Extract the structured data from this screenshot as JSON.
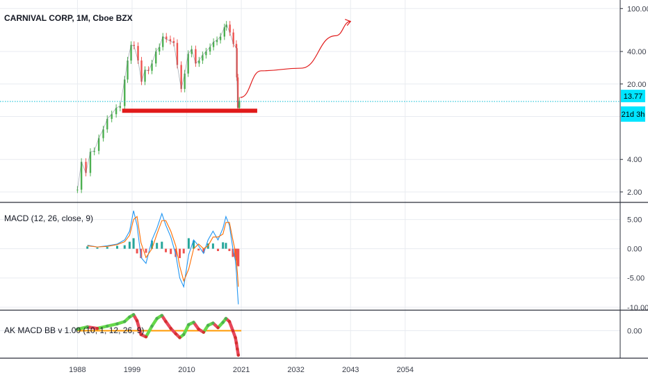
{
  "colors": {
    "background": "#ffffff",
    "grid": "#e8ebf0",
    "separator": "#2a2e39",
    "axis_text": "#3a3e4a",
    "price_line": "#00bcd4",
    "up_candle": "#4caf50",
    "down_candle": "#ef5350",
    "annotation_red": "#e11b1b",
    "macd_line": "#2196f3",
    "signal_line": "#ff6d00",
    "hist_up": "#26a69a",
    "hist_down": "#ef5350",
    "bb_band": "#ff9800",
    "badge_bg": "#00e5ff"
  },
  "chart_data": [
    {
      "type": "line",
      "title": "CARNIVAL CORP, 1M, Cboe BZX",
      "scale": "log",
      "y_ticks": [
        "2.00",
        "4.00",
        "20.00",
        "40.00",
        "100.00"
      ],
      "ylim": [
        1.6,
        120
      ],
      "x_ticks": [
        "1988",
        "1999",
        "2010",
        "2021",
        "2032",
        "2043",
        "2054"
      ],
      "xlim": [
        1972.4,
        2097.3
      ],
      "grid": true,
      "current_price": {
        "label": "13.77",
        "value": 13.77,
        "countdown": "21d 3h"
      },
      "series": [
        {
          "x": [
            1988.0,
            1988.8,
            1989.7,
            1990.6,
            1991.4,
            1992.3,
            1993.2,
            1994.0,
            1994.9,
            1995.8,
            1996.6,
            1997.5,
            1998.1,
            1998.8,
            1999.4,
            2000.2,
            2000.9,
            2001.6,
            2002.3,
            2003.0,
            2003.8,
            2004.5,
            2005.2,
            2005.9,
            2006.7,
            2007.4,
            2008.1,
            2008.9,
            2009.6,
            2010.3,
            2011.0,
            2011.8,
            2012.5,
            2013.2,
            2013.9,
            2014.7,
            2015.4,
            2016.1,
            2016.8,
            2017.6,
            2018.0,
            2018.7,
            2019.4,
            2020.0,
            2020.1,
            2020.3,
            2020.6
          ],
          "values": [
            2.1,
            3.8,
            3.0,
            4.7,
            4.8,
            6.3,
            7.6,
            9.5,
            10.5,
            12.0,
            12.5,
            22.0,
            33.0,
            46.0,
            45.0,
            33.0,
            21.0,
            27.0,
            26.5,
            31.0,
            40.0,
            44.0,
            55.0,
            52.0,
            50.0,
            48.0,
            30.0,
            18.0,
            25.0,
            38.0,
            42.0,
            31.0,
            33.0,
            37.0,
            40.0,
            44.0,
            49.0,
            51.0,
            55.0,
            67.0,
            71.0,
            60.0,
            47.0,
            43.0,
            23.0,
            12.0,
            14.0
          ]
        }
      ],
      "annotations": [
        {
          "kind": "support_line",
          "x": [
            1997.0,
            2024.2
          ],
          "value": 11.3
        },
        {
          "kind": "projection_arrow",
          "x": [
            2020.8,
            2025.0,
            2033.0,
            2040.0,
            2043.0
          ],
          "values": [
            15.0,
            26.5,
            28.0,
            56.0,
            76.0
          ]
        }
      ]
    },
    {
      "type": "bar",
      "title": "MACD (12, 26, close, 9)",
      "y_ticks": [
        "5.00",
        "0.00",
        "-5.00",
        "-10.00"
      ],
      "ylim": [
        -10.5,
        7.8
      ],
      "series": [
        {
          "name": "MACD",
          "x": [
            1990.0,
            1992.0,
            1994.0,
            1996.0,
            1997.5,
            1998.5,
            1999.3,
            2000.0,
            2000.8,
            2001.8,
            2003.0,
            2004.0,
            2005.0,
            2005.8,
            2006.8,
            2007.8,
            2008.6,
            2009.4,
            2010.4,
            2011.4,
            2012.4,
            2013.4,
            2014.3,
            2015.3,
            2016.3,
            2017.3,
            2017.9,
            2018.6,
            2019.3,
            2019.8,
            2020.0,
            2020.2,
            2020.4
          ],
          "values": [
            0.6,
            0.3,
            0.5,
            0.8,
            1.5,
            3.0,
            6.5,
            4.0,
            -1.5,
            -2.5,
            1.5,
            3.5,
            6.0,
            4.0,
            2.0,
            -1.0,
            -5.0,
            -6.5,
            -1.0,
            1.5,
            0.5,
            -0.8,
            1.5,
            3.0,
            1.5,
            3.5,
            5.5,
            4.0,
            0.0,
            -2.0,
            -4.0,
            -7.0,
            -9.5
          ]
        },
        {
          "name": "Signal",
          "x": [
            1990.0,
            1992.0,
            1994.0,
            1996.0,
            1997.5,
            1998.5,
            1999.3,
            2000.0,
            2000.8,
            2001.8,
            2003.0,
            2004.0,
            2005.0,
            2005.8,
            2006.8,
            2007.8,
            2008.6,
            2009.4,
            2010.4,
            2011.4,
            2012.4,
            2013.4,
            2014.3,
            2015.3,
            2016.3,
            2017.3,
            2017.9,
            2018.6,
            2019.3,
            2019.8,
            2020.0,
            2020.2,
            2020.4
          ],
          "values": [
            0.5,
            0.3,
            0.4,
            0.7,
            1.2,
            2.3,
            5.0,
            5.5,
            1.0,
            -1.5,
            0.0,
            2.5,
            4.8,
            4.8,
            3.0,
            0.5,
            -3.0,
            -5.5,
            -3.5,
            0.0,
            0.8,
            0.0,
            0.5,
            2.0,
            2.0,
            2.5,
            4.5,
            4.5,
            1.5,
            -0.5,
            -2.0,
            -4.0,
            -6.5
          ]
        },
        {
          "name": "Histogram",
          "x": [
            1990.0,
            1992.0,
            1994.0,
            1996.0,
            1997.5,
            1998.5,
            1999.3,
            2000.0,
            2000.8,
            2001.8,
            2003.0,
            2004.0,
            2005.0,
            2005.8,
            2006.8,
            2007.8,
            2008.6,
            2009.4,
            2010.4,
            2011.4,
            2012.4,
            2013.4,
            2014.3,
            2015.3,
            2016.3,
            2017.3,
            2017.9,
            2018.6,
            2019.3,
            2019.8,
            2020.0,
            2020.2,
            2020.4
          ],
          "values": [
            0.4,
            0.2,
            0.3,
            0.5,
            0.6,
            1.2,
            1.8,
            -0.8,
            -1.6,
            -0.7,
            1.4,
            1.0,
            1.2,
            -0.6,
            -0.9,
            -1.4,
            -1.6,
            -0.8,
            1.8,
            1.4,
            -0.3,
            -0.7,
            0.9,
            0.9,
            -0.4,
            1.1,
            1.0,
            -0.4,
            -1.4,
            -1.5,
            -2.0,
            -2.8,
            -3.0
          ]
        }
      ]
    },
    {
      "type": "line",
      "title": "AK MACD BB v 1.00 (10, 1, 12, 26, 9)",
      "y_ticks": [
        "0.00"
      ],
      "ylim": [
        -3.6,
        2.6
      ],
      "series": [
        {
          "x": [
            1988.0,
            1990.0,
            1992.0,
            1994.0,
            1996.0,
            1997.5,
            1998.5,
            1999.3,
            2000.0,
            2000.8,
            2001.8,
            2003.0,
            2004.0,
            2005.0,
            2005.8,
            2006.8,
            2007.8,
            2008.6,
            2009.4,
            2010.4,
            2011.4,
            2012.4,
            2013.4,
            2014.3,
            2015.3,
            2016.3,
            2017.3,
            2017.9,
            2018.6,
            2019.3,
            2019.8,
            2020.0,
            2020.2,
            2020.4
          ],
          "values": [
            0.2,
            0.5,
            0.3,
            0.6,
            0.9,
            1.2,
            1.8,
            2.1,
            1.3,
            -0.5,
            -0.8,
            0.6,
            1.6,
            2.0,
            1.2,
            0.3,
            -0.4,
            -0.9,
            -0.5,
            0.8,
            1.1,
            0.2,
            -0.2,
            0.7,
            1.0,
            0.4,
            1.1,
            1.6,
            1.2,
            0.0,
            -0.9,
            -1.6,
            -2.4,
            -3.2
          ]
        }
      ],
      "annotations": [
        {
          "kind": "zero_line",
          "x": [
            1988.0,
            2021.0
          ],
          "value": 0.0
        }
      ]
    }
  ]
}
